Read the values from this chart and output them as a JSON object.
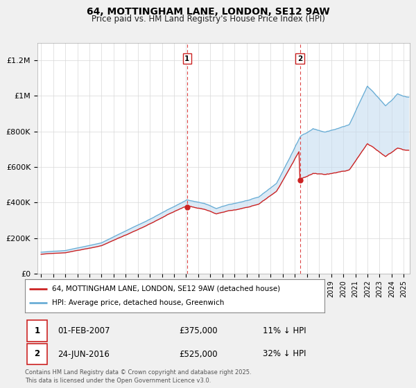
{
  "title": "64, MOTTINGHAM LANE, LONDON, SE12 9AW",
  "subtitle": "Price paid vs. HM Land Registry's House Price Index (HPI)",
  "ylim": [
    0,
    1300000
  ],
  "yticks": [
    0,
    200000,
    400000,
    600000,
    800000,
    1000000,
    1200000
  ],
  "ytick_labels": [
    "£0",
    "£200K",
    "£400K",
    "£600K",
    "£800K",
    "£1M",
    "£1.2M"
  ],
  "bg_color": "#f0f0f0",
  "plot_bg": "#ffffff",
  "line_red": "#cc2222",
  "line_blue": "#6aaed6",
  "fill_blue": "#c5dcf0",
  "sale1_year": 2007.083,
  "sale1_price": 375000,
  "sale2_year": 2016.458,
  "sale2_price": 525000,
  "legend_line1": "64, MOTTINGHAM LANE, LONDON, SE12 9AW (detached house)",
  "legend_line2": "HPI: Average price, detached house, Greenwich",
  "footer": "Contains HM Land Registry data © Crown copyright and database right 2025.\nThis data is licensed under the Open Government Licence v3.0."
}
